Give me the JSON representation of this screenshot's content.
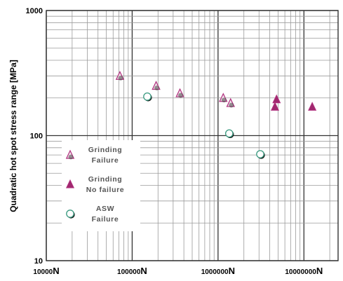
{
  "chart_data": {
    "type": "scatter",
    "title": "",
    "xlabel": "",
    "ylabel": "Quadratic hot spot stress range [MPa]",
    "x_scale": "log",
    "y_scale": "log",
    "xlim": [
      10000,
      25000000
    ],
    "ylim": [
      10,
      1000
    ],
    "grid": true,
    "x_ticks": [
      {
        "value": 10000,
        "label": "10000",
        "unit": "N"
      },
      {
        "value": 100000,
        "label": "100000",
        "unit": "N"
      },
      {
        "value": 1000000,
        "label": "1000000",
        "unit": "N"
      },
      {
        "value": 10000000,
        "label": "10000000",
        "unit": "N"
      }
    ],
    "y_ticks": [
      {
        "value": 10,
        "label": "10"
      },
      {
        "value": 100,
        "label": "100"
      },
      {
        "value": 1000,
        "label": "1000"
      }
    ],
    "legend_position": "bottom-left",
    "series": [
      {
        "name": "Grinding Failure",
        "legend_lines": [
          "Grinding",
          "Failure"
        ],
        "marker": "triangle-open",
        "color": "#b0307e",
        "fill": "#f3e3ec",
        "points": [
          {
            "x": 72000,
            "y": 300
          },
          {
            "x": 190000,
            "y": 250
          },
          {
            "x": 360000,
            "y": 218
          },
          {
            "x": 1150000,
            "y": 200
          },
          {
            "x": 1400000,
            "y": 182
          }
        ]
      },
      {
        "name": "Grinding No failure",
        "legend_lines": [
          "Grinding",
          "No failure"
        ],
        "marker": "triangle-filled",
        "color": "#b0307e",
        "fill": "#a0286e",
        "points": [
          {
            "x": 4800000,
            "y": 195
          },
          {
            "x": 4600000,
            "y": 170
          },
          {
            "x": 12500000,
            "y": 170
          }
        ]
      },
      {
        "name": "ASW Failure",
        "legend_lines": [
          "ASW",
          "Failure"
        ],
        "marker": "circle-open",
        "color": "#3a9a80",
        "fill": "#ffffff",
        "points": [
          {
            "x": 150000,
            "y": 205
          },
          {
            "x": 1350000,
            "y": 104
          },
          {
            "x": 3100000,
            "y": 71
          }
        ]
      }
    ]
  },
  "colors": {
    "plot_background": "#ffffff",
    "grid_minor": "#9a9a9a",
    "grid_major": "#333333"
  }
}
